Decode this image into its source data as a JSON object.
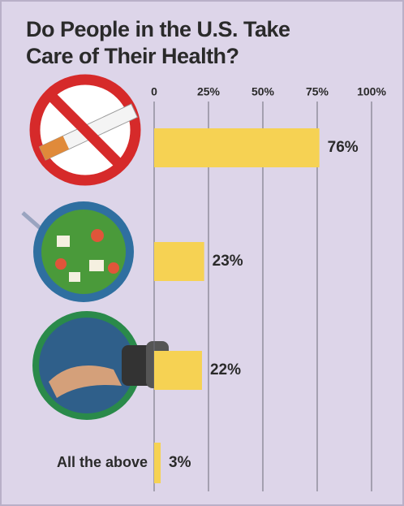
{
  "chart_data": {
    "type": "bar",
    "orientation": "horizontal",
    "title": "Do People in the U.S. Take Care of Their Health?",
    "categories": [
      null,
      null,
      null,
      "All the above"
    ],
    "values": [
      76,
      23,
      22,
      3
    ],
    "value_labels": [
      "76%",
      "23%",
      "22%",
      "3%"
    ],
    "color": "#f6d253",
    "xlim": [
      0,
      100
    ],
    "xticks": [
      0,
      {
        "value": 25,
        "label": "25%"
      },
      {
        "value": 50,
        "label": "50%"
      },
      {
        "value": 75,
        "label": "75%"
      },
      {
        "value": 100,
        "label": "100%"
      }
    ],
    "grid": true
  }
}
